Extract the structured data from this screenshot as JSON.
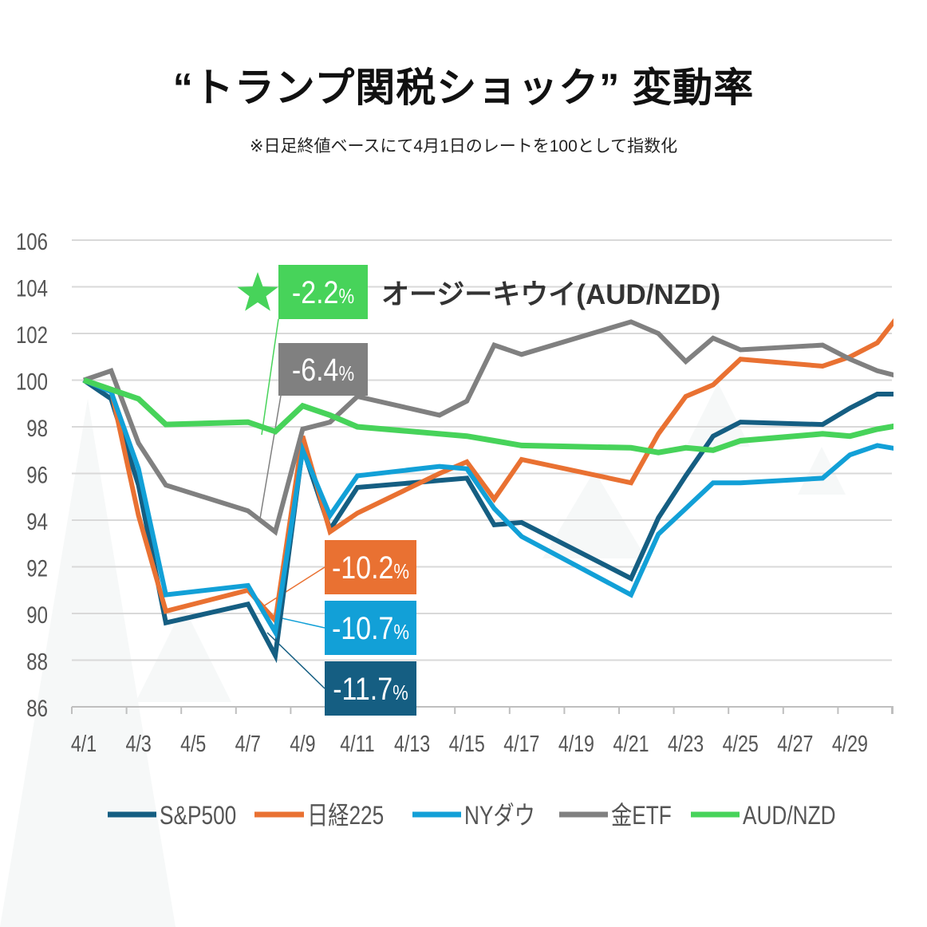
{
  "title": "“トランプ関税ショック” 変動率",
  "subtitle": "※日足終値ベースにて4月1日のレートを100として指数化",
  "chart_data": {
    "type": "line",
    "title": "“トランプ関税ショック” 変動率",
    "subtitle": "※日足終値ベースにて4月1日のレートを100として指数化",
    "xlabel": "",
    "ylabel": "",
    "ylim": [
      86,
      106
    ],
    "yticks": [
      "106",
      "104",
      "102",
      "100",
      "98",
      "96",
      "94",
      "92",
      "90",
      "88",
      "86"
    ],
    "xticks": [
      "4/1",
      "4/3",
      "4/5",
      "4/7",
      "4/9",
      "4/11",
      "4/13",
      "4/15",
      "4/17",
      "4/19",
      "4/21",
      "4/23",
      "4/25",
      "4/27",
      "4/29"
    ],
    "grid": true,
    "legend": "bottom",
    "x": [
      "4/1",
      "4/2",
      "4/3",
      "4/4",
      "4/7",
      "4/8",
      "4/9",
      "4/10",
      "4/11",
      "4/14",
      "4/15",
      "4/16",
      "4/17",
      "4/21",
      "4/22",
      "4/23",
      "4/24",
      "4/25",
      "4/28",
      "4/29",
      "4/30",
      "5/1"
    ],
    "series": [
      {
        "name": "S&P500",
        "color": "#155e82",
        "values": [
          100,
          99.2,
          95.5,
          89.6,
          90.4,
          88.2,
          97.1,
          93.6,
          95.4,
          95.7,
          95.8,
          93.8,
          93.9,
          91.5,
          94.1,
          95.9,
          97.6,
          98.2,
          98.1,
          98.8,
          99.4,
          99.4
        ]
      },
      {
        "name": "日経225",
        "color": "#e97132",
        "values": [
          100,
          99.6,
          94.2,
          90.1,
          91.0,
          89.7,
          97.6,
          93.5,
          94.3,
          96.0,
          96.5,
          94.9,
          96.6,
          95.6,
          97.7,
          99.3,
          99.8,
          100.9,
          100.6,
          101.0,
          101.6,
          103.1
        ]
      },
      {
        "name": "NYダウ",
        "color": "#12a0d7",
        "values": [
          100,
          99.5,
          96.2,
          90.8,
          91.2,
          89.2,
          97.0,
          94.2,
          95.9,
          96.3,
          96.2,
          94.5,
          93.3,
          90.8,
          93.4,
          94.5,
          95.6,
          95.6,
          95.8,
          96.8,
          97.2,
          97.0
        ]
      },
      {
        "name": "金ETF",
        "color": "#808080",
        "values": [
          100,
          100.4,
          97.3,
          95.5,
          94.4,
          93.5,
          97.9,
          98.2,
          99.3,
          98.5,
          99.1,
          101.5,
          101.1,
          102.5,
          102.0,
          100.8,
          101.8,
          101.3,
          101.5,
          100.9,
          100.4,
          100.1
        ]
      },
      {
        "name": "AUD/NZD",
        "color": "#47d35a",
        "values": [
          100,
          99.6,
          99.2,
          98.1,
          98.2,
          97.8,
          98.9,
          98.5,
          98.0,
          97.7,
          97.6,
          97.4,
          97.2,
          97.1,
          96.9,
          97.1,
          97.0,
          97.4,
          97.7,
          97.6,
          97.9,
          98.1
        ]
      }
    ],
    "annotations": [
      {
        "series": "AUD/NZD",
        "value": "-2.2",
        "unit": "%",
        "color": "#47d35a",
        "caption": "オージーキウイ(AUD/NZD)",
        "icon": "star-icon"
      },
      {
        "series": "金ETF",
        "value": "-6.4",
        "unit": "%",
        "color": "#808080"
      },
      {
        "series": "日経225",
        "value": "-10.2",
        "unit": "%",
        "color": "#e97132"
      },
      {
        "series": "NYダウ",
        "value": "-10.7",
        "unit": "%",
        "color": "#12a0d7"
      },
      {
        "series": "S&P500",
        "value": "-11.7",
        "unit": "%",
        "color": "#155e82"
      }
    ]
  }
}
